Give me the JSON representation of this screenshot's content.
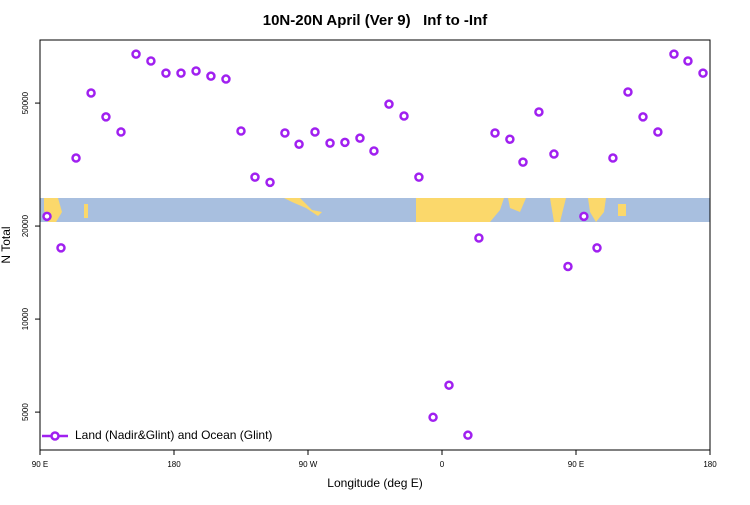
{
  "chart_data": {
    "type": "scatter",
    "title": "10N-20N April (Ver 9)   Inf to -Inf",
    "x_label": "Longitude (deg E)",
    "y_label": "N Total",
    "log_y": true,
    "legend": "bottom-left",
    "xlim": [
      90,
      540
    ],
    "xticks": [
      {
        "value": 90,
        "label": "90 E"
      },
      {
        "value": 180,
        "label": "180"
      },
      {
        "value": 270,
        "label": "90 W"
      },
      {
        "value": 360,
        "label": "0"
      },
      {
        "value": 450,
        "label": "90 E"
      },
      {
        "value": 540,
        "label": "180"
      }
    ],
    "ylim": [
      3770,
      80000
    ],
    "yticks": [
      5000,
      10000,
      20000,
      50000
    ],
    "series": [
      {
        "name": "Land (Nadir&Glint) and Ocean (Glint)",
        "color": "#a020f0",
        "x": [
          94.7,
          104.1,
          114.2,
          124.3,
          134.3,
          144.4,
          154.5,
          164.5,
          174.6,
          184.7,
          194.8,
          204.8,
          214.9,
          225,
          234.4,
          244.5,
          254.5,
          264,
          274.7,
          284.8,
          294.8,
          304.9,
          314.3,
          324.4,
          334.5,
          344.5,
          354,
          364.7,
          377.4,
          384.8,
          395.6,
          405.6,
          414.4,
          425.1,
          435.2,
          444.6,
          455.3,
          464.1,
          474.8,
          484.9,
          495,
          505,
          515.8,
          525.2,
          535.3
        ],
        "values": [
          21500,
          17000,
          33200,
          53900,
          45100,
          40300,
          72000,
          68400,
          62500,
          62500,
          63500,
          61100,
          59800,
          40600,
          28800,
          27700,
          40000,
          36800,
          40300,
          37100,
          37300,
          38500,
          35000,
          49600,
          45400,
          28800,
          4810,
          6110,
          4210,
          18300,
          40000,
          38200,
          32200,
          46800,
          34200,
          14800,
          21500,
          17000,
          33200,
          54300,
          45100,
          40300,
          72000,
          68400,
          62500
        ]
      }
    ]
  }
}
